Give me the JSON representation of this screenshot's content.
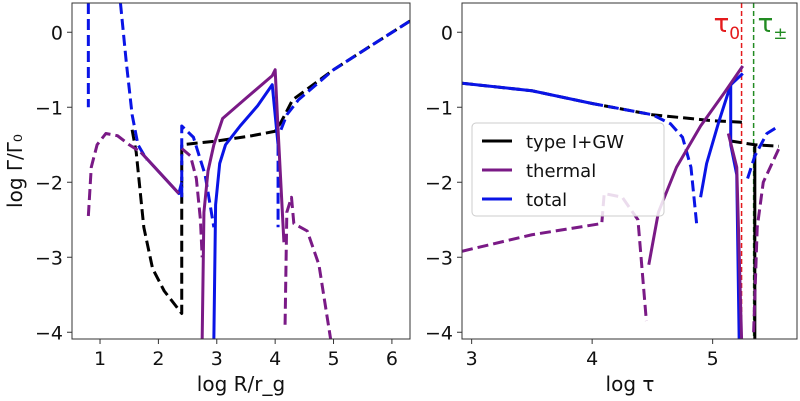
{
  "chart_data": [
    {
      "type": "line",
      "xlabel": "log R/r_g",
      "ylabel": "log Γ/Γ₀",
      "xlim": [
        0.52,
        6.31
      ],
      "ylim": [
        -4.09,
        0.39
      ],
      "xticks": [
        1,
        2,
        3,
        4,
        5,
        6
      ],
      "yticks": [
        0,
        -1,
        -2,
        -3,
        -4
      ],
      "series": [
        {
          "name": "type I+GW",
          "color": "#000000",
          "dash": true,
          "points": [
            [
              1.55,
              -1.3
            ],
            [
              1.62,
              -1.6
            ],
            [
              1.75,
              -2.6
            ],
            [
              1.9,
              -3.15
            ],
            [
              2.1,
              -3.45
            ],
            [
              2.3,
              -3.65
            ],
            [
              2.4,
              -3.75
            ],
            [
              2.4,
              -1.5
            ],
            [
              3.0,
              -1.45
            ],
            [
              3.6,
              -1.38
            ],
            [
              4.0,
              -1.32
            ],
            [
              4.1,
              -1.2
            ],
            [
              4.3,
              -0.9
            ],
            [
              5.0,
              -0.5
            ],
            [
              5.6,
              -0.2
            ],
            [
              6.31,
              0.15
            ]
          ]
        },
        {
          "name": "total",
          "color": "#0a14e6",
          "dash": true,
          "points": [
            [
              0.8,
              0.39
            ],
            [
              0.8,
              -1.0
            ]
          ]
        },
        {
          "name": "total",
          "color": "#0a14e6",
          "dash": true,
          "points": [
            [
              1.35,
              0.39
            ],
            [
              1.45,
              -0.4
            ],
            [
              1.55,
              -1.1
            ],
            [
              1.65,
              -1.5
            ],
            [
              1.8,
              -1.7
            ]
          ]
        },
        {
          "name": "total",
          "color": "#0a14e6",
          "dash": false,
          "points": [
            [
              1.7,
              -1.6
            ],
            [
              2.35,
              -2.15
            ],
            [
              2.4,
              -2.0
            ]
          ]
        },
        {
          "name": "total",
          "color": "#0a14e6",
          "dash": true,
          "points": [
            [
              2.4,
              -2.2
            ],
            [
              2.4,
              -1.25
            ],
            [
              2.6,
              -1.4
            ],
            [
              2.8,
              -1.9
            ],
            [
              2.95,
              -2.6
            ]
          ]
        },
        {
          "name": "total",
          "color": "#0a14e6",
          "dash": false,
          "points": [
            [
              2.95,
              -4.09
            ],
            [
              2.98,
              -2.3
            ],
            [
              3.05,
              -1.75
            ],
            [
              3.15,
              -1.5
            ],
            [
              3.4,
              -1.25
            ],
            [
              3.7,
              -0.98
            ],
            [
              3.95,
              -0.7
            ],
            [
              4.05,
              -1.5
            ]
          ]
        },
        {
          "name": "total",
          "color": "#0a14e6",
          "dash": true,
          "points": [
            [
              4.05,
              -1.5
            ],
            [
              4.05,
              -2.6
            ]
          ]
        },
        {
          "name": "total",
          "color": "#0a14e6",
          "dash": true,
          "points": [
            [
              4.1,
              -1.3
            ],
            [
              4.2,
              -1.1
            ],
            [
              4.4,
              -0.9
            ],
            [
              5.0,
              -0.5
            ],
            [
              5.6,
              -0.2
            ],
            [
              6.31,
              0.15
            ]
          ]
        },
        {
          "name": "thermal",
          "color": "#7a1a86",
          "dash": true,
          "points": [
            [
              0.8,
              -2.45
            ],
            [
              0.85,
              -1.8
            ],
            [
              0.95,
              -1.5
            ],
            [
              1.1,
              -1.35
            ],
            [
              1.3,
              -1.38
            ],
            [
              1.5,
              -1.5
            ],
            [
              1.7,
              -1.6
            ]
          ]
        },
        {
          "name": "thermal",
          "color": "#7a1a86",
          "dash": false,
          "points": [
            [
              1.7,
              -1.6
            ],
            [
              2.35,
              -2.15
            ]
          ]
        },
        {
          "name": "thermal",
          "color": "#7a1a86",
          "dash": true,
          "points": [
            [
              2.4,
              -1.55
            ],
            [
              2.55,
              -1.65
            ],
            [
              2.65,
              -1.95
            ],
            [
              2.72,
              -2.5
            ],
            [
              2.75,
              -3.0
            ]
          ]
        },
        {
          "name": "thermal",
          "color": "#7a1a86",
          "dash": false,
          "points": [
            [
              2.75,
              -4.09
            ],
            [
              2.78,
              -2.4
            ],
            [
              2.85,
              -1.85
            ],
            [
              2.95,
              -1.5
            ],
            [
              3.1,
              -1.15
            ],
            [
              3.5,
              -0.88
            ],
            [
              3.95,
              -0.58
            ],
            [
              4.0,
              -0.5
            ],
            [
              4.05,
              -1.3
            ],
            [
              4.15,
              -2.8
            ]
          ]
        },
        {
          "name": "thermal",
          "color": "#7a1a86",
          "dash": true,
          "points": [
            [
              4.17,
              -3.9
            ],
            [
              4.2,
              -2.4
            ],
            [
              4.28,
              -2.2
            ],
            [
              4.32,
              -2.55
            ],
            [
              4.55,
              -2.65
            ],
            [
              4.75,
              -3.1
            ],
            [
              4.95,
              -4.09
            ]
          ]
        }
      ]
    },
    {
      "type": "line",
      "xlabel": "log τ",
      "ylabel": "",
      "xlim": [
        2.92,
        5.7
      ],
      "ylim": [
        -4.09,
        0.39
      ],
      "xticks": [
        3,
        4,
        5
      ],
      "yticks": [
        0,
        -1,
        -2,
        -3,
        -4
      ],
      "legend": {
        "position": "center-left",
        "entries": [
          {
            "label": "type I+GW",
            "color": "#000000"
          },
          {
            "label": "thermal",
            "color": "#7a1a86"
          },
          {
            "label": "total",
            "color": "#0a14e6"
          }
        ]
      },
      "vlines": [
        {
          "x": 5.24,
          "label": "τ",
          "sub": "0",
          "color": "#e41a1c"
        },
        {
          "x": 5.34,
          "label": "τ",
          "sub": "±",
          "color": "#228b22"
        }
      ],
      "series": [
        {
          "name": "type I+GW",
          "color": "#000000",
          "dash": true,
          "points": [
            [
              2.92,
              -0.68
            ],
            [
              3.5,
              -0.78
            ],
            [
              4.0,
              -0.95
            ],
            [
              4.5,
              -1.1
            ],
            [
              5.0,
              -1.18
            ],
            [
              5.25,
              -1.2
            ]
          ]
        },
        {
          "name": "type I+GW",
          "color": "#000000",
          "dash": true,
          "points": [
            [
              5.15,
              -1.45
            ],
            [
              5.35,
              -1.5
            ],
            [
              5.55,
              -1.52
            ]
          ]
        },
        {
          "name": "type I+GW",
          "color": "#000000",
          "dash": false,
          "points": [
            [
              5.35,
              -1.5
            ],
            [
              5.35,
              -4.09
            ]
          ]
        },
        {
          "name": "total",
          "color": "#0a14e6",
          "dash": false,
          "points": [
            [
              2.92,
              -0.68
            ],
            [
              3.5,
              -0.78
            ],
            [
              4.0,
              -0.95
            ]
          ]
        },
        {
          "name": "total",
          "color": "#0a14e6",
          "dash": true,
          "points": [
            [
              4.0,
              -0.95
            ],
            [
              4.5,
              -1.1
            ],
            [
              4.65,
              -1.22
            ],
            [
              4.75,
              -1.4
            ],
            [
              4.82,
              -1.8
            ],
            [
              4.87,
              -2.6
            ]
          ]
        },
        {
          "name": "total",
          "color": "#0a14e6",
          "dash": false,
          "points": [
            [
              4.9,
              -2.2
            ],
            [
              4.95,
              -1.75
            ],
            [
              5.05,
              -1.2
            ],
            [
              5.15,
              -0.7
            ],
            [
              5.15,
              -1.5
            ],
            [
              5.2,
              -1.9
            ],
            [
              5.22,
              -4.09
            ]
          ]
        },
        {
          "name": "total",
          "color": "#0a14e6",
          "dash": false,
          "points": [
            [
              5.15,
              -0.7
            ],
            [
              5.25,
              -0.55
            ]
          ]
        },
        {
          "name": "total",
          "color": "#0a14e6",
          "dash": true,
          "points": [
            [
              5.29,
              -1.95
            ],
            [
              5.35,
              -1.65
            ],
            [
              5.45,
              -1.35
            ],
            [
              5.55,
              -1.25
            ]
          ]
        },
        {
          "name": "thermal",
          "color": "#7a1a86",
          "dash": true,
          "points": [
            [
              2.92,
              -2.92
            ],
            [
              3.5,
              -2.7
            ],
            [
              4.08,
              -2.55
            ],
            [
              4.1,
              -2.15
            ],
            [
              4.25,
              -2.2
            ],
            [
              4.38,
              -2.5
            ],
            [
              4.45,
              -3.85
            ]
          ]
        },
        {
          "name": "thermal",
          "color": "#7a1a86",
          "dash": false,
          "points": [
            [
              4.47,
              -3.1
            ],
            [
              4.55,
              -2.4
            ],
            [
              4.7,
              -1.8
            ],
            [
              4.9,
              -1.25
            ],
            [
              5.1,
              -0.8
            ],
            [
              5.25,
              -0.45
            ]
          ]
        },
        {
          "name": "thermal",
          "color": "#7a1a86",
          "dash": false,
          "points": [
            [
              5.13,
              -1.35
            ],
            [
              5.2,
              -1.8
            ],
            [
              5.24,
              -4.09
            ]
          ]
        },
        {
          "name": "thermal",
          "color": "#7a1a86",
          "dash": true,
          "points": [
            [
              5.34,
              -4.0
            ],
            [
              5.37,
              -2.6
            ],
            [
              5.42,
              -2.0
            ],
            [
              5.55,
              -1.55
            ]
          ]
        }
      ]
    }
  ]
}
